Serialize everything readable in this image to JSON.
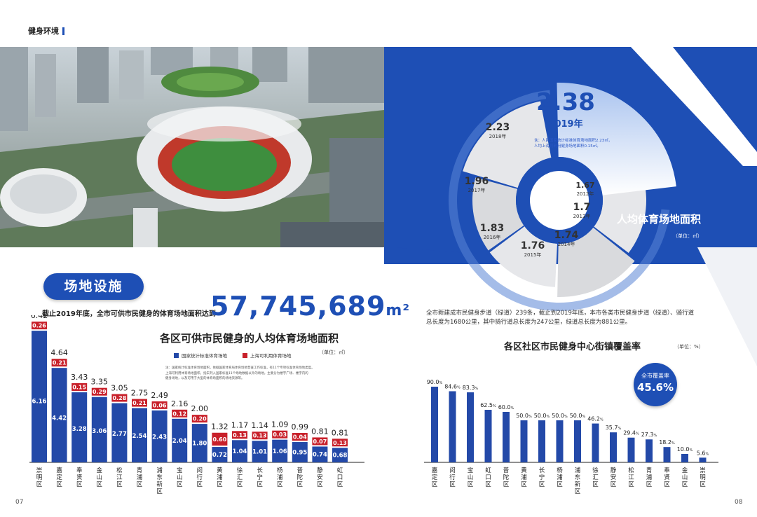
{
  "header": {
    "section_label": "健身环境"
  },
  "facility": {
    "title": "场地设施",
    "total_area_label": "截止2019年底，全市可供市民健身的体育场地面积达到",
    "total_area_value": "57,745,689",
    "total_area_unit": "m²"
  },
  "ring": {
    "title": "人均体育场地面积",
    "unit": "（单位：㎡）",
    "note_line1": "含：人民国家统计标准体育场地面积2.23㎡，",
    "note_line2": "人均上海可利用健身场地面积0.15㎡。"
  },
  "chart_data": [
    {
      "type": "pie",
      "title": "人均体育场地面积",
      "unit": "（单位：㎡）",
      "categories": [
        "2012年",
        "2013年",
        "2014年",
        "2015年",
        "2016年",
        "2017年",
        "2018年",
        "2019年"
      ],
      "values": [
        1.67,
        1.7,
        1.74,
        1.76,
        1.83,
        1.96,
        2.23,
        2.38
      ]
    },
    {
      "type": "bar",
      "stacked": true,
      "title": "各区可供市民健身的人均体育场地面积",
      "unit": "（单位：㎡）",
      "categories": [
        "崇明区",
        "嘉定区",
        "奉贤区",
        "金山区",
        "松江区",
        "青浦区",
        "浦东新区",
        "宝山区",
        "闵行区",
        "黄浦区",
        "徐汇区",
        "长宁区",
        "杨浦区",
        "普陀区",
        "静安区",
        "虹口区"
      ],
      "totals": [
        "6.42",
        "4.64",
        "3.43",
        "3.35",
        "3.05",
        "2.75",
        "2.49",
        "2.16",
        "2.00",
        "1.32",
        "1.17",
        "1.14",
        "1.09",
        "0.99",
        "0.81",
        "0.81"
      ],
      "series": [
        {
          "name": "国家统计标准体育场地",
          "color": "#2349a8",
          "values": [
            "6.16",
            "4.42",
            "3.28",
            "3.06",
            "2.77",
            "2.54",
            "2.43",
            "2.04",
            "1.80",
            "0.72",
            "1.04",
            "1.01",
            "1.06",
            "0.95",
            "0.74",
            "0.68"
          ]
        },
        {
          "name": "上海可利用体育场地",
          "color": "#c8202a",
          "values": [
            "0.26",
            "0.21",
            "0.15",
            "0.29",
            "0.28",
            "0.21",
            "0.06",
            "0.12",
            "0.20",
            "0.60",
            "0.13",
            "0.13",
            "0.03",
            "0.04",
            "0.07",
            "0.13"
          ]
        }
      ],
      "legend": "top-right",
      "note_line1": "注：国家统计标准体育场地面积，依据国家体育局体育场地普查工作标准，有11个专项标准体育场地类型。",
      "note_line2": "上海可利用体育场地面积，指未列入国家标准11个场地数据以外的场地。主要分为楼宇广场、楼宇内的",
      "note_line3": "健身场地，以及可用于大型的体育场面积的场地资源等。"
    },
    {
      "type": "bar",
      "title": "各区社区市民健身中心街镇覆盖率",
      "unit": "（单位：%）",
      "categories": [
        "嘉定区",
        "闵行区",
        "宝山区",
        "虹口区",
        "普陀区",
        "黄浦区",
        "长宁区",
        "杨浦区",
        "浦东新区",
        "徐汇区",
        "静安区",
        "松江区",
        "青浦区",
        "奉贤区",
        "金山区",
        "崇明区"
      ],
      "values": [
        90.0,
        84.6,
        83.3,
        62.5,
        60.0,
        50.0,
        50.0,
        50.0,
        50.0,
        46.2,
        35.7,
        29.4,
        27.3,
        18.2,
        10.0,
        5.6
      ],
      "labels": [
        "90.0",
        "84.6",
        "83.3",
        "62.5",
        "60.0",
        "50.0",
        "50.0",
        "50.0",
        "50.0",
        "46.2",
        "35.7",
        "29.4",
        "27.3",
        "18.2",
        "10.0",
        "5.6"
      ],
      "label_suffix": "%",
      "badge_title": "全市覆盖率",
      "badge_value": "45.6%"
    }
  ],
  "fitness_paths": {
    "line1": "全市新建成市民健身步道（绿道）239条，截止到2019年底，本市各类市民健身步道（绿道）、骑行道",
    "line2": "总长度为1680公里，其中骑行道总长度为247公里，绿道总长度为881公里。"
  },
  "pages": {
    "left": "07",
    "right": "08"
  }
}
